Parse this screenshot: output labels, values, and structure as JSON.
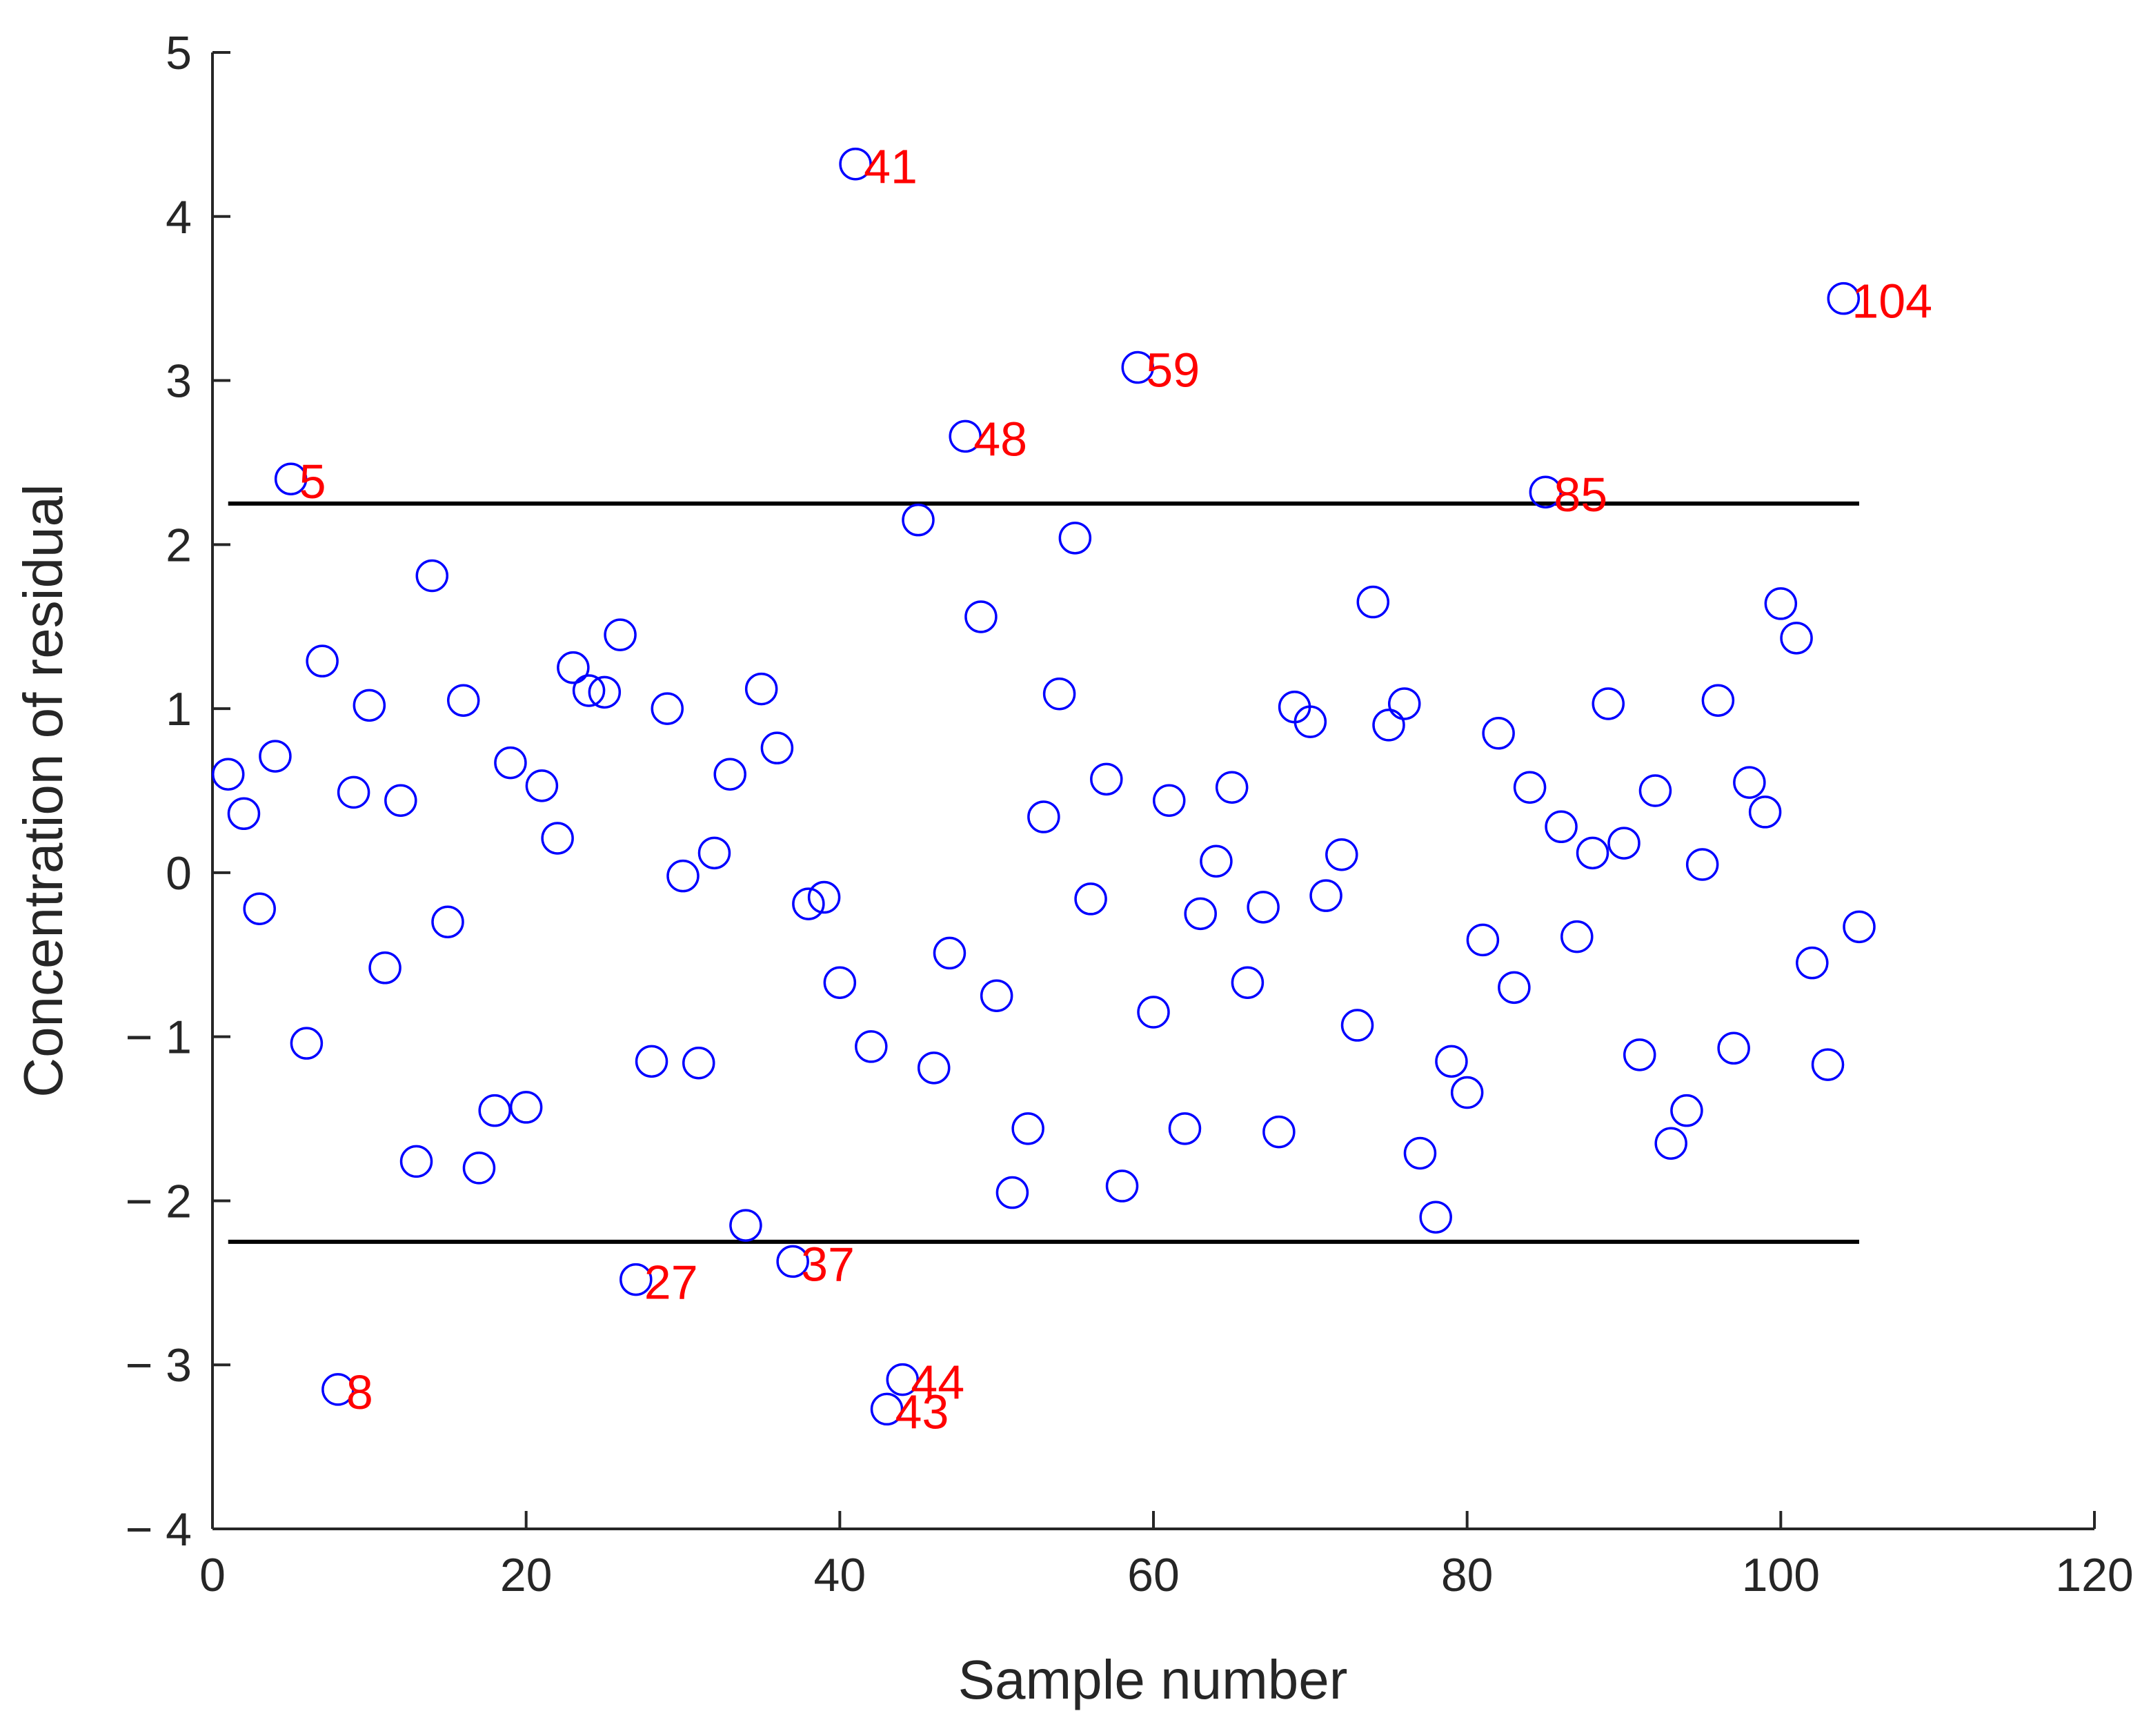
{
  "chart_data": {
    "type": "scatter",
    "title": "",
    "xlabel": "Sample number",
    "ylabel": "Concentration of residual",
    "xlim": [
      0,
      120
    ],
    "ylim": [
      -4,
      5
    ],
    "xticks": [
      "0",
      "20",
      "40",
      "60",
      "80",
      "100",
      "120"
    ],
    "yticks": [
      "5",
      "4",
      "3",
      "2",
      "1",
      "0",
      "− 1",
      "− 2",
      "− 3",
      "− 4"
    ],
    "grid": false,
    "legend": "none",
    "marker": "circle-open",
    "colors": {
      "points": "#0000ff",
      "outlier_labels": "#ff0000",
      "control_limits": "#000000",
      "axes": "#262626"
    },
    "control_limits": {
      "upper": 2.25,
      "lower": -2.25,
      "x_range": [
        1,
        105
      ]
    },
    "x": [
      1,
      2,
      3,
      4,
      5,
      6,
      7,
      8,
      9,
      10,
      11,
      12,
      13,
      14,
      15,
      16,
      17,
      18,
      19,
      20,
      21,
      22,
      23,
      24,
      25,
      26,
      27,
      28,
      29,
      30,
      31,
      32,
      33,
      34,
      35,
      36,
      37,
      38,
      39,
      40,
      41,
      42,
      43,
      44,
      45,
      46,
      47,
      48,
      49,
      50,
      51,
      52,
      53,
      54,
      55,
      56,
      57,
      58,
      59,
      60,
      61,
      62,
      63,
      64,
      65,
      66,
      67,
      68,
      69,
      70,
      71,
      72,
      73,
      74,
      75,
      76,
      77,
      78,
      79,
      80,
      81,
      82,
      83,
      84,
      85,
      86,
      87,
      88,
      89,
      90,
      91,
      92,
      93,
      94,
      95,
      96,
      97,
      98,
      99,
      100,
      101,
      102,
      103,
      104,
      105
    ],
    "y": [
      0.6,
      0.36,
      -0.22,
      0.71,
      2.4,
      -1.04,
      1.29,
      -3.15,
      0.49,
      1.02,
      -0.58,
      0.44,
      -1.76,
      1.81,
      -0.3,
      1.05,
      -1.8,
      -1.45,
      0.67,
      -1.43,
      0.53,
      0.21,
      1.25,
      1.11,
      1.1,
      1.45,
      -2.48,
      -1.15,
      1.0,
      -0.02,
      -1.16,
      0.12,
      0.6,
      -2.15,
      1.12,
      0.76,
      -2.37,
      -0.19,
      -0.15,
      -0.67,
      4.32,
      -1.06,
      -3.27,
      -3.09,
      2.15,
      -1.19,
      -0.49,
      2.66,
      1.56,
      -0.75,
      -1.95,
      -1.56,
      0.34,
      1.09,
      2.04,
      -0.16,
      0.57,
      -1.91,
      3.08,
      -0.85,
      0.44,
      -1.56,
      -0.25,
      0.07,
      0.52,
      -0.67,
      -0.21,
      -1.58,
      1.01,
      0.92,
      -0.14,
      0.11,
      -0.93,
      1.65,
      0.9,
      1.03,
      -1.71,
      -2.1,
      -1.15,
      -1.34,
      -0.41,
      0.85,
      -0.7,
      0.52,
      2.32,
      0.28,
      -0.39,
      0.12,
      1.03,
      0.18,
      -1.11,
      0.5,
      -1.65,
      -1.45,
      0.05,
      1.05,
      -1.07,
      0.55,
      0.37,
      1.64,
      1.43,
      -0.55,
      -1.17,
      3.5,
      -0.33
    ],
    "annotations": [
      {
        "text": "5",
        "x": 5,
        "y": 2.4
      },
      {
        "text": "8",
        "x": 8,
        "y": -3.15
      },
      {
        "text": "27",
        "x": 27,
        "y": -2.48
      },
      {
        "text": "37",
        "x": 37,
        "y": -2.37
      },
      {
        "text": "41",
        "x": 41,
        "y": 4.32
      },
      {
        "text": "43",
        "x": 43,
        "y": -3.27
      },
      {
        "text": "44",
        "x": 44,
        "y": -3.09
      },
      {
        "text": "48",
        "x": 48,
        "y": 2.66
      },
      {
        "text": "59",
        "x": 59,
        "y": 3.08
      },
      {
        "text": "85",
        "x": 85,
        "y": 2.32
      },
      {
        "text": "104",
        "x": 104,
        "y": 3.5
      }
    ]
  }
}
